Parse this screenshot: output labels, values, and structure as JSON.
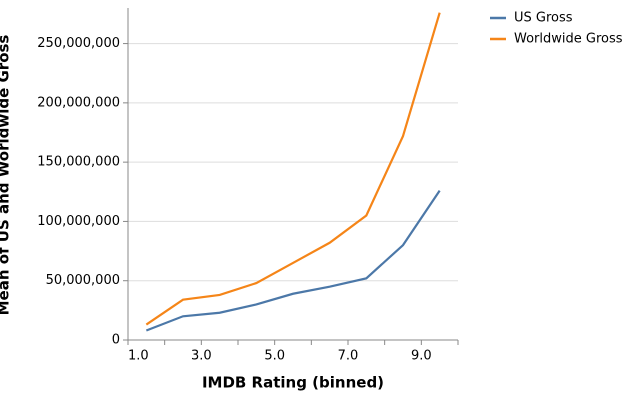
{
  "chart_data": {
    "type": "line",
    "x_label": "IMDB Rating (binned)",
    "y_label": "Mean of US and Worldwide Gross",
    "x": [
      1.5,
      2.5,
      3.5,
      4.5,
      5.5,
      6.5,
      7.5,
      8.5,
      9.5
    ],
    "series": [
      {
        "name": "US Gross",
        "color": "#4c78a8",
        "values": [
          8000000,
          20000000,
          23000000,
          30000000,
          39000000,
          45000000,
          52000000,
          80000000,
          126000000
        ]
      },
      {
        "name": "Worldwide Gross",
        "color": "#f58518",
        "values": [
          13000000,
          34000000,
          38000000,
          48000000,
          65000000,
          82000000,
          105000000,
          172000000,
          276000000
        ]
      }
    ],
    "xlim": [
      1,
      10
    ],
    "xticks": [
      {
        "value": 1,
        "label": "1.0"
      },
      {
        "value": 3,
        "label": "3.0"
      },
      {
        "value": 5,
        "label": "5.0"
      },
      {
        "value": 7,
        "label": "7.0"
      },
      {
        "value": 9,
        "label": "9.0"
      }
    ],
    "xminorticks": [
      2,
      4,
      6,
      8,
      10
    ],
    "ylim": [
      0,
      280000000
    ],
    "yticks": [
      0,
      {
        "value": 50000000,
        "label": "50,000,000"
      },
      {
        "value": 100000000,
        "label": "100,000,000"
      },
      {
        "value": 150000000,
        "label": "150,000,000"
      },
      {
        "value": 200000000,
        "label": "200,000,000"
      },
      {
        "value": 250000000,
        "label": "250,000,000"
      }
    ],
    "grid": true,
    "legend": "right"
  }
}
